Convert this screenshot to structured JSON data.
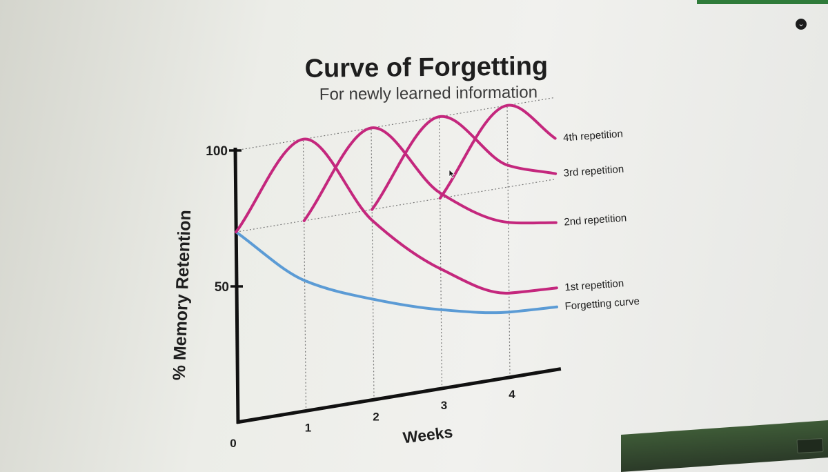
{
  "chart_data": {
    "type": "line",
    "title": "Curve of Forgetting",
    "subtitle": "For newly learned information",
    "xlabel": "Weeks",
    "ylabel": "% Memory Retention",
    "x_ticks": [
      "1",
      "2",
      "3",
      "4"
    ],
    "origin_label": "0",
    "y_ticks": [
      "50",
      "100"
    ],
    "xlim": [
      0,
      4.7
    ],
    "ylim": [
      0,
      100
    ],
    "grid": "dotted vertical lines at weeks 1-4, dotted horizontal lines at 100 and 70",
    "colors": {
      "forgetting": "#5b9bd5",
      "repetition": "#c4277d"
    },
    "series": [
      {
        "name": "Forgetting curve",
        "x": [
          0,
          1,
          2,
          3,
          4,
          4.7
        ],
        "y": [
          70,
          48,
          37,
          29,
          24,
          23
        ]
      },
      {
        "name": "1st repetition",
        "x": [
          0,
          1,
          2,
          3,
          4,
          4.7
        ],
        "y": [
          70,
          100,
          66,
          44,
          31,
          30
        ]
      },
      {
        "name": "2nd repetition",
        "x": [
          1,
          2,
          3,
          4,
          4.7
        ],
        "y": [
          70,
          100,
          72,
          57,
          54
        ]
      },
      {
        "name": "3rd repetition",
        "x": [
          2,
          3,
          4,
          4.7
        ],
        "y": [
          70,
          100,
          78,
          72
        ]
      },
      {
        "name": "4th repetition",
        "x": [
          3,
          4,
          4.7
        ],
        "y": [
          70,
          100,
          85
        ]
      }
    ]
  }
}
